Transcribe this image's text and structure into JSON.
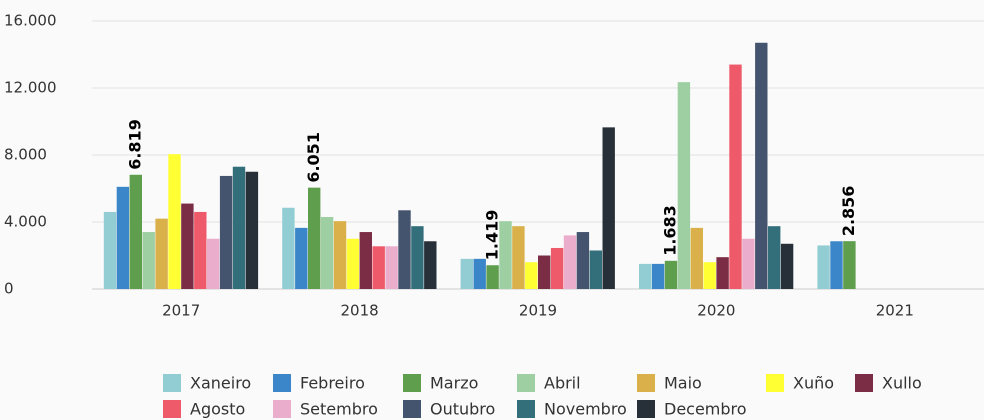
{
  "chart_data": {
    "type": "bar",
    "categories": [
      "2017",
      "2018",
      "2019",
      "2020",
      "2021"
    ],
    "ylim": [
      0,
      16000
    ],
    "yticks": [
      0,
      {
        "value": 4000,
        "label": "4.000"
      },
      {
        "value": 8000,
        "label": "8.000"
      },
      {
        "value": 12000,
        "label": "12.000"
      },
      {
        "value": 16000,
        "label": "16.000"
      }
    ],
    "grid": true,
    "legend": "bottom",
    "series": [
      {
        "name": "Xaneiro",
        "color": "#92cdd3",
        "values": [
          4600,
          4850,
          1800,
          1500,
          2600
        ]
      },
      {
        "name": "Febreiro",
        "color": "#3b86c8",
        "values": [
          6100,
          3650,
          1800,
          1500,
          2850
        ]
      },
      {
        "name": "Marzo",
        "color": "#5f9e4d",
        "values": [
          6819,
          6051,
          1419,
          1683,
          2856
        ],
        "value_labels": [
          "6.819",
          "6.051",
          "1.419",
          "1.683",
          "2.856"
        ]
      },
      {
        "name": "Abril",
        "color": "#9dcfa3",
        "values": [
          3400,
          4300,
          4050,
          12350,
          null
        ]
      },
      {
        "name": "Maio",
        "color": "#d9b04a",
        "values": [
          4200,
          4050,
          3750,
          3650,
          null
        ]
      },
      {
        "name": "Xuño",
        "color": "#ffff33",
        "values": [
          8050,
          3000,
          1600,
          1600,
          null
        ]
      },
      {
        "name": "Xullo",
        "color": "#7b2d45",
        "values": [
          5100,
          3400,
          2000,
          1900,
          null
        ]
      },
      {
        "name": "Agosto",
        "color": "#ef5a6a",
        "values": [
          4600,
          2550,
          2450,
          13400,
          null
        ]
      },
      {
        "name": "Setembro",
        "color": "#eaadcb",
        "values": [
          3000,
          2550,
          3200,
          3000,
          null
        ]
      },
      {
        "name": "Outubro",
        "color": "#44546e",
        "values": [
          6750,
          4700,
          3400,
          14700,
          null
        ]
      },
      {
        "name": "Novembro",
        "color": "#336f7b",
        "values": [
          7300,
          3750,
          2300,
          3750,
          null
        ]
      },
      {
        "name": "Decembro",
        "color": "#273038",
        "values": [
          7000,
          2850,
          9650,
          2700,
          null
        ]
      }
    ]
  }
}
